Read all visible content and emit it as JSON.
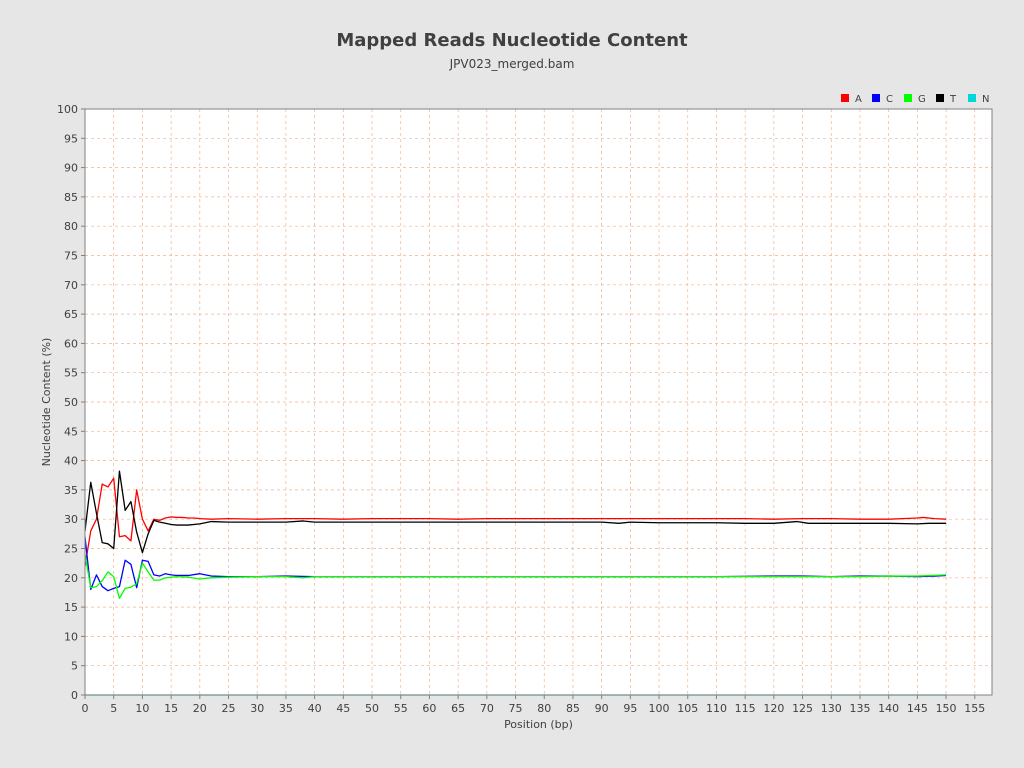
{
  "chart_data": {
    "type": "line",
    "title": "Mapped Reads Nucleotide Content",
    "subtitle": "JPV023_merged.bam",
    "xlabel": "Position (bp)",
    "ylabel": "Nucleotide Content (%)",
    "xlim": [
      0,
      158
    ],
    "ylim": [
      0,
      100
    ],
    "xticks": [
      0,
      5,
      10,
      15,
      20,
      25,
      30,
      35,
      40,
      45,
      50,
      55,
      60,
      65,
      70,
      75,
      80,
      85,
      90,
      95,
      100,
      105,
      110,
      115,
      120,
      125,
      130,
      135,
      140,
      145,
      150,
      155
    ],
    "yticks": [
      0,
      5,
      10,
      15,
      20,
      25,
      30,
      35,
      40,
      45,
      50,
      55,
      60,
      65,
      70,
      75,
      80,
      85,
      90,
      95,
      100
    ],
    "grid": true,
    "legend_position": "top-right",
    "series": [
      {
        "name": "A",
        "color": "#ff0000",
        "points": [
          [
            0,
            22
          ],
          [
            1,
            28
          ],
          [
            2,
            30
          ],
          [
            3,
            36
          ],
          [
            4,
            35.5
          ],
          [
            5,
            37
          ],
          [
            6,
            27
          ],
          [
            7,
            27.2
          ],
          [
            8,
            26.3
          ],
          [
            9,
            35
          ],
          [
            10,
            30
          ],
          [
            11,
            28
          ],
          [
            12,
            30
          ],
          [
            13,
            29.8
          ],
          [
            14,
            30.2
          ],
          [
            15,
            30.4
          ],
          [
            16,
            30.3
          ],
          [
            17,
            30.3
          ],
          [
            18,
            30.2
          ],
          [
            19,
            30.2
          ],
          [
            20,
            30.1
          ],
          [
            22,
            30
          ],
          [
            25,
            30.1
          ],
          [
            30,
            30
          ],
          [
            35,
            30.1
          ],
          [
            40,
            30.1
          ],
          [
            45,
            30
          ],
          [
            50,
            30.1
          ],
          [
            55,
            30.1
          ],
          [
            60,
            30.1
          ],
          [
            65,
            30
          ],
          [
            70,
            30.1
          ],
          [
            75,
            30.1
          ],
          [
            80,
            30.1
          ],
          [
            85,
            30.1
          ],
          [
            90,
            30.1
          ],
          [
            95,
            30.1
          ],
          [
            100,
            30.1
          ],
          [
            105,
            30.1
          ],
          [
            110,
            30.1
          ],
          [
            115,
            30.1
          ],
          [
            120,
            30
          ],
          [
            125,
            30.1
          ],
          [
            130,
            30.1
          ],
          [
            135,
            30
          ],
          [
            140,
            30
          ],
          [
            145,
            30.2
          ],
          [
            146,
            30.3
          ],
          [
            148,
            30.1
          ],
          [
            150,
            30
          ]
        ]
      },
      {
        "name": "C",
        "color": "#0000ff",
        "points": [
          [
            0,
            27
          ],
          [
            1,
            18
          ],
          [
            2,
            20.5
          ],
          [
            3,
            18.5
          ],
          [
            4,
            17.8
          ],
          [
            5,
            18.2
          ],
          [
            6,
            18.5
          ],
          [
            7,
            23
          ],
          [
            8,
            22.3
          ],
          [
            9,
            18.3
          ],
          [
            10,
            23
          ],
          [
            11,
            22.8
          ],
          [
            12,
            20.5
          ],
          [
            13,
            20.3
          ],
          [
            14,
            20.7
          ],
          [
            15,
            20.5
          ],
          [
            16,
            20.4
          ],
          [
            18,
            20.4
          ],
          [
            20,
            20.7
          ],
          [
            22,
            20.3
          ],
          [
            25,
            20.2
          ],
          [
            30,
            20.2
          ],
          [
            35,
            20.3
          ],
          [
            40,
            20.2
          ],
          [
            50,
            20.2
          ],
          [
            60,
            20.2
          ],
          [
            70,
            20.2
          ],
          [
            80,
            20.2
          ],
          [
            90,
            20.2
          ],
          [
            100,
            20.2
          ],
          [
            110,
            20.2
          ],
          [
            120,
            20.3
          ],
          [
            125,
            20.3
          ],
          [
            130,
            20.2
          ],
          [
            135,
            20.3
          ],
          [
            140,
            20.3
          ],
          [
            145,
            20.2
          ],
          [
            148,
            20.3
          ],
          [
            150,
            20.4
          ]
        ]
      },
      {
        "name": "G",
        "color": "#00ff00",
        "points": [
          [
            0,
            24
          ],
          [
            1,
            18.3
          ],
          [
            2,
            18.5
          ],
          [
            3,
            19.5
          ],
          [
            4,
            21
          ],
          [
            5,
            20.2
          ],
          [
            6,
            16.5
          ],
          [
            7,
            18.2
          ],
          [
            8,
            18.4
          ],
          [
            9,
            19
          ],
          [
            10,
            22.5
          ],
          [
            11,
            21
          ],
          [
            12,
            19.6
          ],
          [
            13,
            19.6
          ],
          [
            14,
            20
          ],
          [
            16,
            20.2
          ],
          [
            18,
            20.1
          ],
          [
            20,
            19.8
          ],
          [
            22,
            20
          ],
          [
            25,
            20.1
          ],
          [
            30,
            20.2
          ],
          [
            35,
            20.2
          ],
          [
            38,
            20
          ],
          [
            40,
            20.2
          ],
          [
            50,
            20.2
          ],
          [
            60,
            20.2
          ],
          [
            70,
            20.2
          ],
          [
            80,
            20.2
          ],
          [
            90,
            20.2
          ],
          [
            100,
            20.2
          ],
          [
            110,
            20.2
          ],
          [
            120,
            20.2
          ],
          [
            130,
            20.2
          ],
          [
            135,
            20.2
          ],
          [
            140,
            20.3
          ],
          [
            145,
            20.3
          ],
          [
            150,
            20.5
          ]
        ]
      },
      {
        "name": "T",
        "color": "#000000",
        "points": [
          [
            0,
            28
          ],
          [
            1,
            36.3
          ],
          [
            2,
            31
          ],
          [
            3,
            26
          ],
          [
            4,
            25.8
          ],
          [
            5,
            25
          ],
          [
            6,
            38.2
          ],
          [
            7,
            31.5
          ],
          [
            8,
            33
          ],
          [
            9,
            27.8
          ],
          [
            10,
            24.3
          ],
          [
            11,
            27.5
          ],
          [
            12,
            29.8
          ],
          [
            13,
            29.5
          ],
          [
            14,
            29.3
          ],
          [
            15,
            29.1
          ],
          [
            16,
            29
          ],
          [
            18,
            29
          ],
          [
            20,
            29.2
          ],
          [
            22,
            29.6
          ],
          [
            25,
            29.5
          ],
          [
            30,
            29.5
          ],
          [
            35,
            29.5
          ],
          [
            38,
            29.7
          ],
          [
            40,
            29.5
          ],
          [
            50,
            29.5
          ],
          [
            60,
            29.5
          ],
          [
            70,
            29.5
          ],
          [
            80,
            29.5
          ],
          [
            90,
            29.5
          ],
          [
            93,
            29.3
          ],
          [
            95,
            29.5
          ],
          [
            100,
            29.4
          ],
          [
            105,
            29.4
          ],
          [
            110,
            29.4
          ],
          [
            115,
            29.3
          ],
          [
            120,
            29.3
          ],
          [
            124,
            29.6
          ],
          [
            126,
            29.3
          ],
          [
            130,
            29.3
          ],
          [
            135,
            29.3
          ],
          [
            140,
            29.3
          ],
          [
            145,
            29.2
          ],
          [
            147,
            29.3
          ],
          [
            150,
            29.3
          ]
        ]
      },
      {
        "name": "N",
        "color": "#00d8d8",
        "points": [
          [
            0,
            0
          ],
          [
            150,
            0
          ]
        ]
      }
    ]
  }
}
